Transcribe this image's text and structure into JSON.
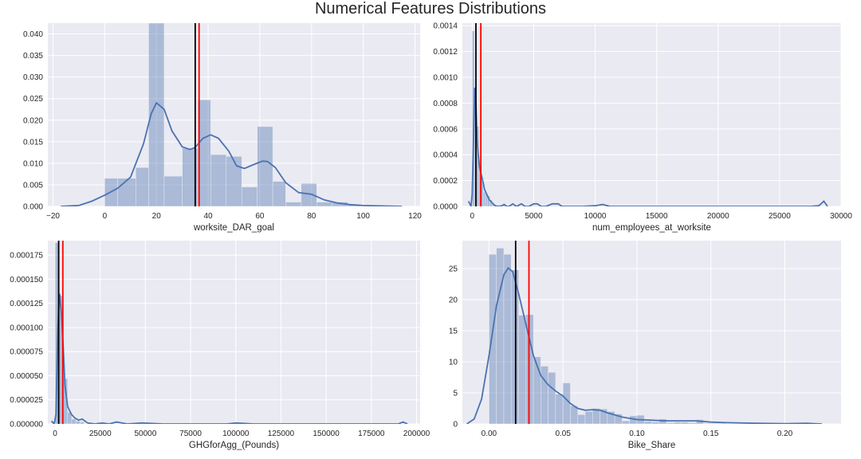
{
  "figure": {
    "title": "Numerical Features Distributions"
  },
  "style": {
    "background": "#EAEAF2",
    "grid": "#FFFFFF",
    "bar_fill": "#4C72B0",
    "bar_alpha": 0.4,
    "kde_line": "#4C72B0",
    "median_line": "#000000",
    "mean_line": "#FF0000"
  },
  "chart_data": [
    {
      "type": "histogram",
      "xlabel": "worksite_DAR_goal",
      "xlim": [
        -22,
        122
      ],
      "ylim": [
        0,
        0.0425
      ],
      "xticks": [
        -20,
        0,
        20,
        40,
        60,
        80,
        100,
        120
      ],
      "xtick_labels": [
        "−20",
        "0",
        "20",
        "40",
        "60",
        "80",
        "100",
        "120"
      ],
      "yticks": [
        0,
        0.005,
        0.01,
        0.015,
        0.02,
        0.025,
        0.03,
        0.035,
        0.04
      ],
      "ytick_labels": [
        "0.000",
        "0.005",
        "0.010",
        "0.015",
        "0.020",
        "0.025",
        "0.030",
        "0.035",
        "0.040"
      ],
      "bin_edges": [
        0,
        5,
        12,
        17,
        23,
        30,
        36,
        41,
        47,
        53,
        59,
        65,
        70,
        76,
        82,
        88,
        94,
        99
      ],
      "bin_heights": [
        0.0065,
        0.0065,
        0.009,
        0.0425,
        0.007,
        0.0135,
        0.0247,
        0.012,
        0.0116,
        0.0045,
        0.0185,
        0.0058,
        0.001,
        0.0053,
        0.001,
        0.001,
        0.0005
      ],
      "kde": {
        "x": [
          -17,
          -10,
          -5,
          0,
          5,
          10,
          15,
          18,
          20,
          23,
          26,
          30,
          33,
          35,
          38,
          41,
          44,
          48,
          51,
          54,
          58,
          61,
          63,
          66,
          70,
          75,
          80,
          85,
          90,
          95,
          100,
          108,
          115
        ],
        "y": [
          0,
          0.0002,
          0.0012,
          0.0026,
          0.0042,
          0.0068,
          0.0145,
          0.0215,
          0.024,
          0.0225,
          0.0175,
          0.0138,
          0.0132,
          0.0137,
          0.0158,
          0.0166,
          0.0158,
          0.0128,
          0.0094,
          0.0088,
          0.0098,
          0.0105,
          0.0104,
          0.009,
          0.0055,
          0.0032,
          0.0028,
          0.0015,
          0.0008,
          0.0004,
          0.0002,
          0.0001,
          0
        ]
      },
      "median": 35,
      "mean": 36.5
    },
    {
      "type": "histogram",
      "xlabel": "num_employees_at_worksite",
      "xlim": [
        -800,
        30000
      ],
      "ylim": [
        0,
        0.00142
      ],
      "xticks": [
        0,
        5000,
        10000,
        15000,
        20000,
        25000,
        30000
      ],
      "xtick_labels": [
        "0",
        "5000",
        "10000",
        "15000",
        "20000",
        "25000",
        "30000"
      ],
      "yticks": [
        0,
        0.0002,
        0.0004,
        0.0006,
        0.0008,
        0.001,
        0.0012,
        0.0014
      ],
      "ytick_labels": [
        "0.0000",
        "0.0002",
        "0.0004",
        "0.0006",
        "0.0008",
        "0.0010",
        "0.0012",
        "0.0014"
      ],
      "bin_edges": [
        0,
        180,
        360,
        540,
        720,
        900,
        1080,
        1260,
        1440,
        1620,
        1800,
        2500,
        3200,
        3900,
        4600,
        5300,
        6000,
        6700,
        7400
      ],
      "bin_heights": [
        0.00136,
        0.00092,
        0.00062,
        0.00029,
        0.0002,
        0.00011,
        0.0001,
        8e-05,
        5e-05,
        2e-05,
        1e-05,
        5e-06,
        5e-06,
        5e-06,
        5e-06,
        5e-06,
        5e-06,
        5e-06
      ],
      "kde": {
        "x": [
          -300,
          -100,
          0,
          100,
          200,
          300,
          400,
          500,
          600,
          700,
          800,
          900,
          1000,
          1200,
          1400,
          1600,
          1800,
          2000,
          2300,
          2600,
          2800,
          3000,
          3300,
          3600,
          4000,
          4300,
          4600,
          5000,
          5300,
          5600,
          6000,
          6500,
          7000,
          7300,
          8000,
          9000,
          10000,
          10600,
          11200,
          12000,
          15000,
          20000,
          25000,
          27500,
          28200,
          28600,
          28900
        ],
        "y": [
          4e-05,
          0,
          0.0001,
          0.0005,
          0.00092,
          0.0008,
          0.0005,
          0.0004,
          0.0003,
          0.00026,
          0.00022,
          0.00018,
          0.00013,
          9e-05,
          5e-05,
          3e-05,
          1e-05,
          0,
          0,
          1.5e-05,
          0,
          0,
          2e-05,
          0,
          2e-05,
          0,
          0,
          2e-05,
          2e-05,
          0,
          0,
          2e-05,
          2e-05,
          0,
          0,
          0,
          5e-06,
          1.5e-05,
          0,
          0,
          0,
          0,
          0,
          0,
          5e-06,
          4e-05,
          0
        ]
      },
      "median": 300,
      "mean": 700
    },
    {
      "type": "histogram",
      "xlabel": "GHGforAgg_(Pounds)",
      "xlim": [
        -4000,
        202000
      ],
      "ylim": [
        0,
        0.00019
      ],
      "xticks": [
        0,
        25000,
        50000,
        75000,
        100000,
        125000,
        150000,
        175000,
        200000
      ],
      "xtick_labels": [
        "0",
        "25000",
        "50000",
        "75000",
        "100000",
        "125000",
        "150000",
        "175000",
        "200000"
      ],
      "yticks": [
        0,
        2.5e-05,
        5e-05,
        7.5e-05,
        0.0001,
        0.000125,
        0.00015,
        0.000175
      ],
      "ytick_labels": [
        "0.000000",
        "0.000025",
        "0.000050",
        "0.000075",
        "0.000100",
        "0.000125",
        "0.000150",
        "0.000175"
      ],
      "bin_edges": [
        0,
        2300,
        4600,
        6900,
        9200,
        11500,
        13800,
        16100
      ],
      "bin_heights": [
        0.000188,
        0.000133,
        4.7e-05,
        1.2e-05,
        5e-06,
        3e-06,
        2e-06
      ],
      "kde": {
        "x": [
          -2000,
          -500,
          500,
          1500,
          2500,
          3500,
          4500,
          5500,
          7000,
          9000,
          11000,
          13000,
          15000,
          18000,
          22000,
          26000,
          30000,
          34000,
          40000,
          48000,
          60000,
          80000,
          95000,
          100000,
          110000,
          140000,
          170000,
          185000,
          190000,
          192500,
          195000
        ],
        "y": [
          3e-06,
          0,
          1e-05,
          0.0001,
          0.000135,
          0.000115,
          8e-05,
          4e-05,
          1.8e-05,
          1e-05,
          6e-06,
          4e-06,
          5e-06,
          1e-06,
          0,
          1e-06,
          0,
          2e-06,
          0,
          1e-06,
          0,
          0,
          0,
          1e-06,
          0,
          0,
          0,
          0,
          0,
          2e-06,
          0
        ]
      },
      "median": 2000,
      "mean": 4300
    },
    {
      "type": "histogram",
      "xlabel": "Bike_Share",
      "xlim": [
        -0.018,
        0.238
      ],
      "ylim": [
        0,
        29.5
      ],
      "xticks": [
        0.0,
        0.05,
        0.1,
        0.15,
        0.2
      ],
      "xtick_labels": [
        "0.00",
        "0.05",
        "0.10",
        "0.15",
        "0.20"
      ],
      "yticks": [
        0,
        5,
        10,
        15,
        20,
        25
      ],
      "ytick_labels": [
        "0",
        "5",
        "10",
        "15",
        "20",
        "25"
      ],
      "bin_edges": [
        0,
        0.005,
        0.01,
        0.015,
        0.02,
        0.025,
        0.03,
        0.035,
        0.04,
        0.045,
        0.05,
        0.055,
        0.06,
        0.065,
        0.07,
        0.075,
        0.08,
        0.085,
        0.09,
        0.095,
        0.1,
        0.105,
        0.11,
        0.115,
        0.12,
        0.125,
        0.13,
        0.135,
        0.14,
        0.145,
        0.15,
        0.155,
        0.16
      ],
      "bin_heights": [
        27.3,
        28.3,
        27.3,
        24.8,
        17.5,
        17.6,
        10.8,
        9.3,
        8.3,
        4.8,
        6.6,
        2.9,
        1.5,
        2.0,
        2.5,
        2.4,
        2.0,
        1.6,
        0.5,
        1.3,
        1.4,
        0.4,
        0.3,
        0.8,
        0.2,
        0.3,
        0.3,
        0.2,
        0.7,
        0.1,
        0.1,
        0.1
      ],
      "kde": {
        "x": [
          -0.015,
          -0.01,
          -0.005,
          0.0,
          0.005,
          0.01,
          0.013,
          0.016,
          0.02,
          0.025,
          0.03,
          0.035,
          0.04,
          0.045,
          0.05,
          0.055,
          0.06,
          0.065,
          0.07,
          0.075,
          0.08,
          0.09,
          0.1,
          0.11,
          0.12,
          0.13,
          0.14,
          0.15,
          0.16,
          0.18,
          0.2,
          0.215,
          0.225
        ],
        "y": [
          0,
          0.8,
          4,
          11,
          19,
          24,
          25.1,
          24.5,
          21,
          16,
          11,
          7.8,
          6.3,
          5.3,
          4.5,
          3.3,
          2.5,
          2.2,
          2.3,
          2.2,
          1.8,
          1.1,
          0.7,
          0.6,
          0.5,
          0.5,
          0.5,
          0.3,
          0.2,
          0.1,
          0.05,
          0.1,
          0
        ]
      },
      "median": 0.018,
      "mean": 0.027
    }
  ]
}
